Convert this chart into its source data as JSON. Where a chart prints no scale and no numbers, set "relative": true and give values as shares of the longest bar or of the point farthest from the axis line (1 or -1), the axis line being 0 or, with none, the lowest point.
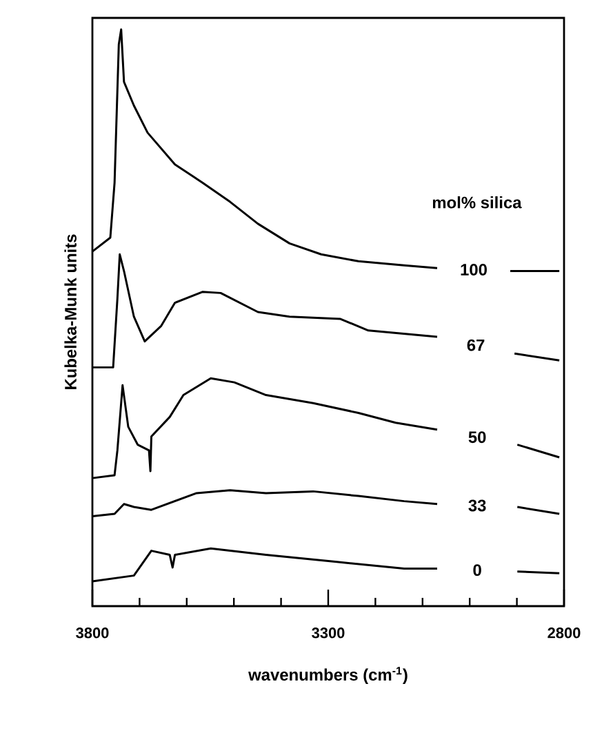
{
  "chart_data": {
    "type": "line",
    "relative": true,
    "xlabel": "wavenumbers (cm$^{-1}$)",
    "ylabel": "Kubelka-Munk units",
    "legend_title": "mol% silica",
    "xlim": [
      3800,
      2800
    ],
    "xticks": [
      3800,
      3300,
      2800
    ],
    "series": [
      {
        "name": "100",
        "color": "#000000",
        "x": [
          3800,
          3762,
          3753,
          3744,
          3739,
          3733,
          3712,
          3683,
          3625,
          3566,
          3508,
          3449,
          3382,
          3315,
          3236,
          3139,
          3069,
          2985,
          2914,
          2810
        ],
        "values": [
          0.615,
          0.639,
          0.734,
          0.974,
          1,
          0.909,
          0.868,
          0.821,
          0.766,
          0.734,
          0.701,
          0.663,
          0.629,
          0.61,
          0.598,
          0.591,
          0.586,
          null,
          0.581,
          0.581
        ]
      },
      {
        "name": "67",
        "color": "#000000",
        "x": [
          3800,
          3756,
          3747,
          3742,
          3733,
          3712,
          3689,
          3654,
          3625,
          3566,
          3528,
          3449,
          3382,
          3274,
          3215,
          3069,
          2985,
          2905,
          2810
        ],
        "values": [
          0.414,
          0.414,
          0.533,
          0.61,
          0.581,
          0.502,
          0.459,
          0.486,
          0.526,
          0.545,
          0.543,
          0.51,
          0.502,
          0.498,
          0.478,
          0.467,
          null,
          0.438,
          0.426
        ]
      },
      {
        "name": "50",
        "color": "#000000",
        "x": [
          3800,
          3753,
          3747,
          3736,
          3724,
          3704,
          3680,
          3677,
          3675,
          3636,
          3607,
          3549,
          3499,
          3432,
          3332,
          3236,
          3157,
          3069,
          2985,
          2899,
          2810
        ],
        "values": [
          0.222,
          0.227,
          0.27,
          0.383,
          0.311,
          0.28,
          0.27,
          0.234,
          0.294,
          0.328,
          0.366,
          0.395,
          0.388,
          0.366,
          0.352,
          0.335,
          0.318,
          0.306,
          null,
          0.28,
          0.258
        ]
      },
      {
        "name": "33",
        "color": "#000000",
        "x": [
          3800,
          3753,
          3733,
          3712,
          3675,
          3579,
          3508,
          3432,
          3332,
          3236,
          3139,
          3069,
          2985,
          2899,
          2810
        ],
        "values": [
          0.156,
          0.16,
          0.177,
          0.172,
          0.167,
          0.196,
          0.201,
          0.196,
          0.199,
          0.191,
          0.182,
          0.177,
          null,
          0.172,
          0.16
        ]
      },
      {
        "name": "0",
        "color": "#000000",
        "x": [
          3800,
          3712,
          3675,
          3636,
          3630,
          3625,
          3549,
          3432,
          3285,
          3139,
          3069,
          2985,
          2899,
          2810
        ],
        "values": [
          0.043,
          0.053,
          0.096,
          0.089,
          0.067,
          0.089,
          0.1,
          0.089,
          0.077,
          0.065,
          0.065,
          null,
          0.06,
          0.057
        ]
      }
    ]
  }
}
